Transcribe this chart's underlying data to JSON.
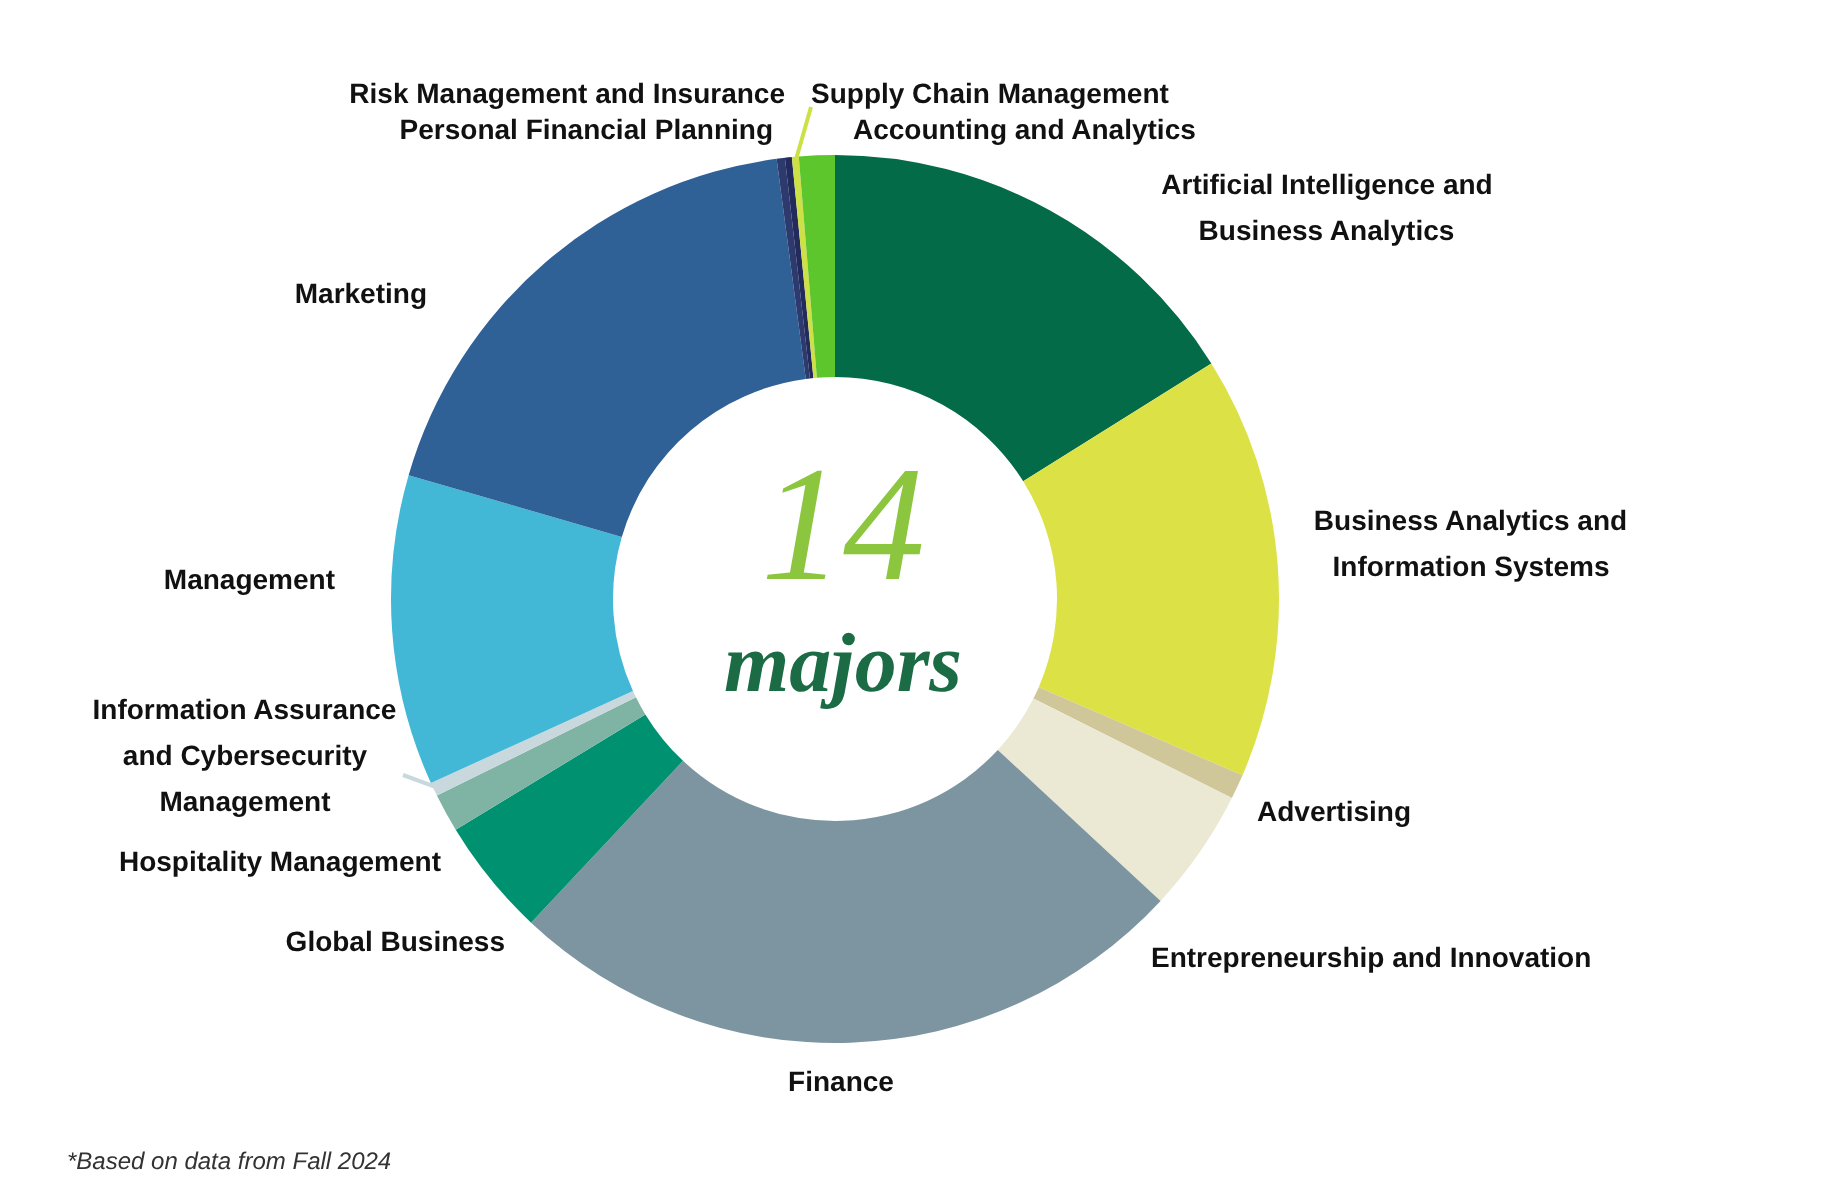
{
  "chart_data": {
    "type": "donut",
    "title": "14 majors",
    "categories": [
      "Artificial Intelligence and Business Analytics",
      "Business Analytics and Information Systems",
      "Advertising",
      "Entrepreneurship and Innovation",
      "Finance",
      "Global Business",
      "Hospitality Management",
      "Information Assurance and Cybersecurity Management",
      "Management",
      "Marketing",
      "Personal Financial Planning",
      "Risk Management and Insurance",
      "Supply Chain Management",
      "Accounting and Analytics"
    ],
    "values": [
      16.1,
      15.4,
      0.9,
      4.5,
      25.1,
      4.3,
      1.4,
      0.5,
      11.3,
      18.4,
      0.3,
      0.25,
      0.25,
      1.3
    ],
    "colors": [
      "#046b48",
      "#dce246",
      "#cfc799",
      "#ebe9d3",
      "#7d95a0",
      "#009270",
      "#7fb3a3",
      "#c9d8dd",
      "#43b8d6",
      "#2f6096",
      "#2d3a6e",
      "#232a5c",
      "#cde046",
      "#5cc62c"
    ],
    "annotations": [
      "*Based on data from Fall 2024"
    ]
  }
}
